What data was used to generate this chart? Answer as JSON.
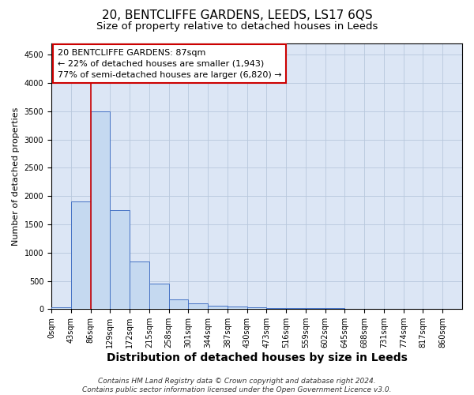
{
  "title": "20, BENTCLIFFE GARDENS, LEEDS, LS17 6QS",
  "subtitle": "Size of property relative to detached houses in Leeds",
  "xlabel": "Distribution of detached houses by size in Leeds",
  "ylabel": "Number of detached properties",
  "footnote": "Contains HM Land Registry data © Crown copyright and database right 2024.\nContains public sector information licensed under the Open Government Licence v3.0.",
  "categories": [
    "0sqm",
    "43sqm",
    "86sqm",
    "129sqm",
    "172sqm",
    "215sqm",
    "258sqm",
    "301sqm",
    "344sqm",
    "387sqm",
    "430sqm",
    "473sqm",
    "516sqm",
    "559sqm",
    "602sqm",
    "645sqm",
    "688sqm",
    "731sqm",
    "774sqm",
    "817sqm",
    "860sqm"
  ],
  "bar_values": [
    30,
    1900,
    3500,
    1750,
    850,
    450,
    175,
    100,
    60,
    50,
    35,
    25,
    20,
    15,
    12,
    10,
    8,
    6,
    4,
    3,
    2
  ],
  "bar_color": "#c5d9f0",
  "bar_edge_color": "#4472c4",
  "property_line_color": "#cc0000",
  "property_bin_index": 2,
  "annotation_line1": "20 BENTCLIFFE GARDENS: 87sqm",
  "annotation_line2": "← 22% of detached houses are smaller (1,943)",
  "annotation_line3": "77% of semi-detached houses are larger (6,820) →",
  "annotation_box_facecolor": "#ffffff",
  "annotation_box_edge_color": "#cc0000",
  "ylim_max": 4700,
  "yticks": [
    0,
    500,
    1000,
    1500,
    2000,
    2500,
    3000,
    3500,
    4000,
    4500
  ],
  "background_color": "#ffffff",
  "plot_bg_color": "#dce6f5",
  "grid_color": "#b8c8dc",
  "title_fontsize": 11,
  "subtitle_fontsize": 9.5,
  "xlabel_fontsize": 10,
  "ylabel_fontsize": 8,
  "tick_fontsize": 7,
  "annotation_fontsize": 8,
  "footnote_fontsize": 6.5
}
